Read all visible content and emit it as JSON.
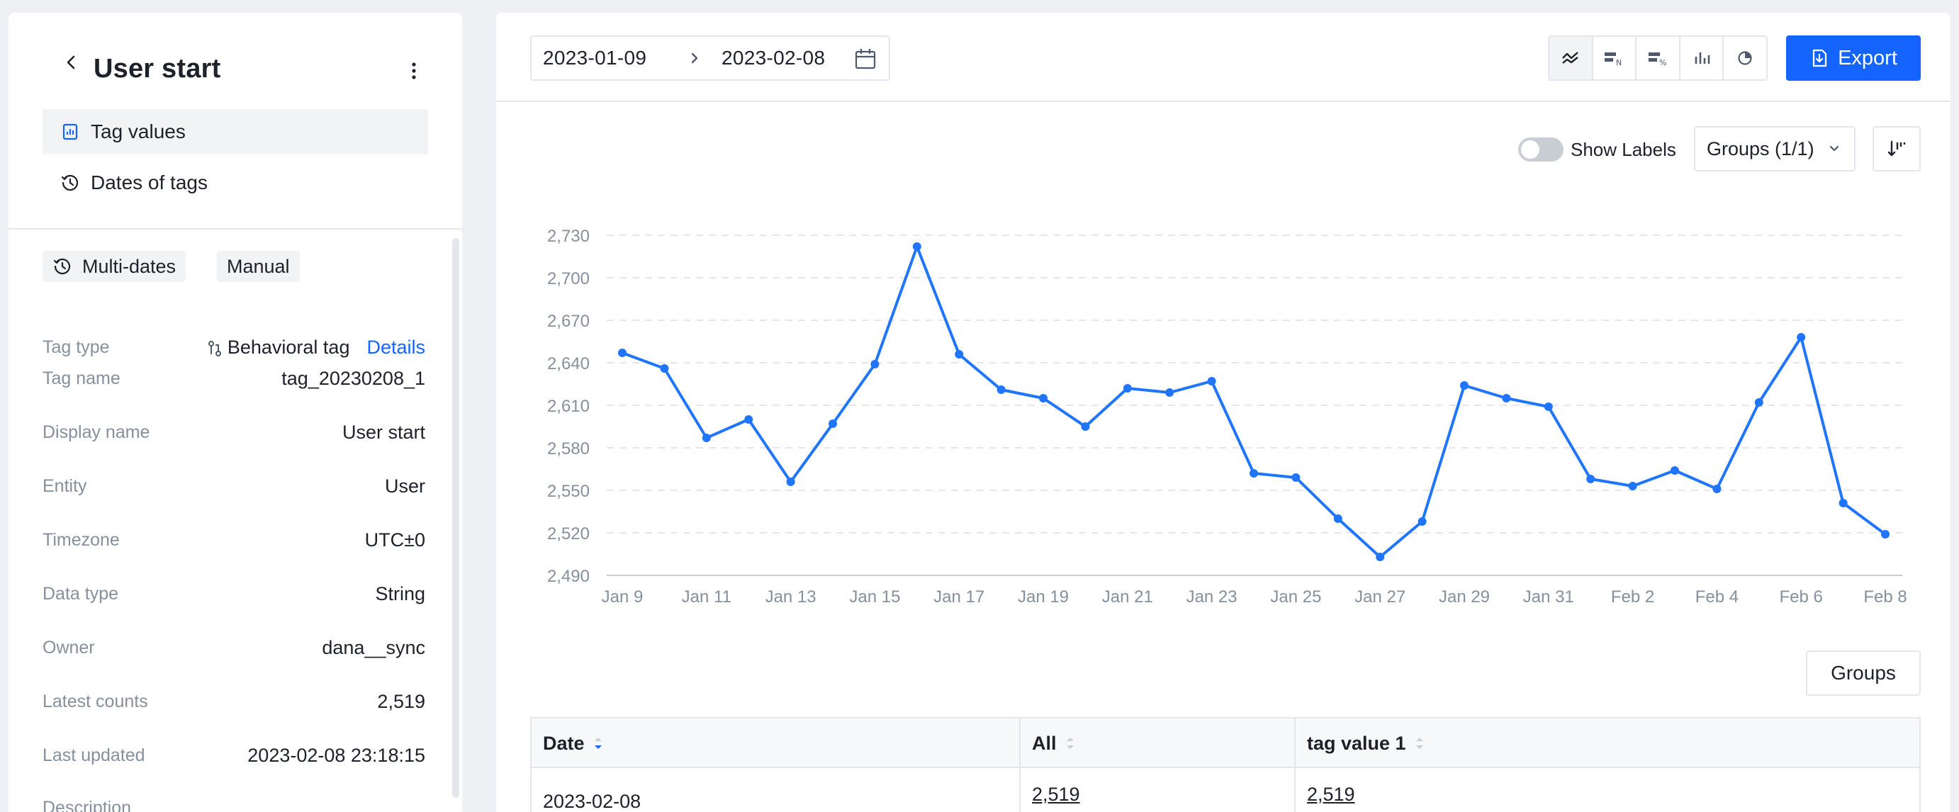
{
  "left_panel": {
    "title": "User start",
    "nav": [
      {
        "label": "Tag values",
        "active": true
      },
      {
        "label": "Dates of tags",
        "active": false
      }
    ],
    "chips": [
      "Multi-dates",
      "Manual"
    ],
    "properties": {
      "tag_type_label": "Tag type",
      "tag_type_value": "Behavioral tag",
      "tag_type_link": "Details",
      "tag_name_label": "Tag name",
      "tag_name_value": "tag_20230208_1",
      "display_name_label": "Display name",
      "display_name_value": "User start",
      "entity_label": "Entity",
      "entity_value": "User",
      "timezone_label": "Timezone",
      "timezone_value": "UTC±0",
      "data_type_label": "Data type",
      "data_type_value": "String",
      "owner_label": "Owner",
      "owner_value": "dana__sync",
      "latest_counts_label": "Latest counts",
      "latest_counts_value": "2,519",
      "last_updated_label": "Last updated",
      "last_updated_value": "2023-02-08 23:18:15",
      "description_label": "Description"
    }
  },
  "toolbar": {
    "date_start": "2023-01-09",
    "date_end": "2023-02-08",
    "view_buttons": [
      "line-chart-icon",
      "table-count-icon",
      "table-percent-icon",
      "bar-chart-icon",
      "pie-chart-icon"
    ],
    "export_label": "Export"
  },
  "chart_controls": {
    "show_labels": "Show Labels",
    "show_labels_on": false,
    "groups_select": "Groups (1/1)"
  },
  "chart_data": {
    "type": "line",
    "title": "",
    "xlabel": "",
    "ylabel": "",
    "ylim": [
      2490,
      2730
    ],
    "y_ticks": [
      "2,490",
      "2,520",
      "2,550",
      "2,580",
      "2,610",
      "2,640",
      "2,670",
      "2,700",
      "2,730"
    ],
    "x_tick_labels": [
      "Jan 9",
      "Jan 11",
      "Jan 13",
      "Jan 15",
      "Jan 17",
      "Jan 19",
      "Jan 21",
      "Jan 23",
      "Jan 25",
      "Jan 27",
      "Jan 29",
      "Jan 31",
      "Feb 2",
      "Feb 4",
      "Feb 6",
      "Feb 8"
    ],
    "x": [
      "2023-01-09",
      "2023-01-10",
      "2023-01-11",
      "2023-01-12",
      "2023-01-13",
      "2023-01-14",
      "2023-01-15",
      "2023-01-16",
      "2023-01-17",
      "2023-01-18",
      "2023-01-19",
      "2023-01-20",
      "2023-01-21",
      "2023-01-22",
      "2023-01-23",
      "2023-01-24",
      "2023-01-25",
      "2023-01-26",
      "2023-01-27",
      "2023-01-28",
      "2023-01-29",
      "2023-01-30",
      "2023-01-31",
      "2023-02-01",
      "2023-02-02",
      "2023-02-03",
      "2023-02-04",
      "2023-02-05",
      "2023-02-06",
      "2023-02-07",
      "2023-02-08"
    ],
    "series": [
      {
        "values": [
          2647,
          2636,
          2587,
          2600,
          2556,
          2597,
          2639,
          2722,
          2646,
          2621,
          2615,
          2595,
          2622,
          2619,
          2627,
          2562,
          2559,
          2530,
          2503,
          2528,
          2624,
          2615,
          2609,
          2558,
          2553,
          2564,
          2551,
          2612,
          2658,
          2541,
          2519
        ],
        "color": "#1f75fe"
      }
    ],
    "grid": true
  },
  "groups_button": "Groups",
  "table": {
    "headers": [
      "Date",
      "All",
      "tag value 1"
    ],
    "rows": [
      [
        "2023-02-08",
        "2,519",
        "2,519"
      ]
    ]
  }
}
